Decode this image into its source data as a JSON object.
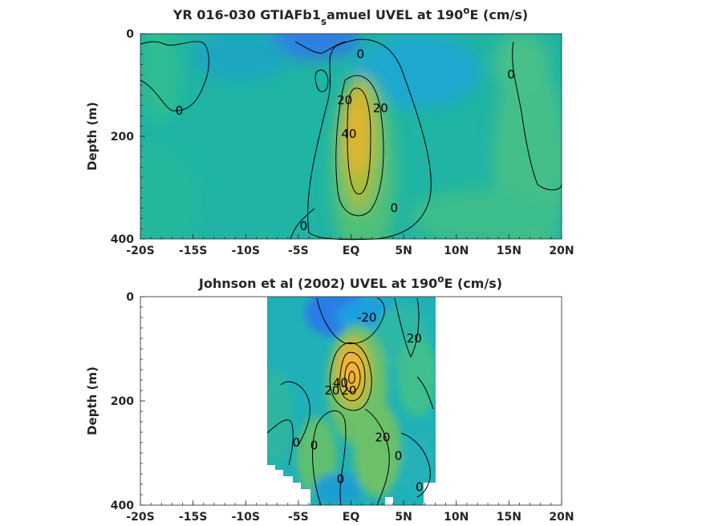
{
  "chart_data": [
    {
      "type": "heatmap",
      "title_parts": {
        "pre": "YR 016-030 GTIAFb1",
        "sub": "s",
        "mid": "amuel UVEL at 190",
        "sup": "o",
        "post": "E (cm/s)"
      },
      "xlabel": "",
      "ylabel": "Depth (m)",
      "x_tick_labels": [
        "-20S",
        "-15S",
        "-10S",
        "-5S",
        "EQ",
        "5N",
        "10N",
        "15N",
        "20N"
      ],
      "x_tick_values": [
        -20,
        -15,
        -10,
        -5,
        0,
        5,
        10,
        15,
        20
      ],
      "y_tick_labels": [
        "0",
        "200",
        "400"
      ],
      "y_tick_values": [
        0,
        200,
        400
      ],
      "xlim": [
        -20,
        20
      ],
      "ylim": [
        400,
        0
      ],
      "data_extent_lat": [
        -20,
        20
      ],
      "contour_levels": [
        -20,
        0,
        20,
        40
      ],
      "contour_labels": [
        {
          "text": "0",
          "lat": 0.9,
          "depth": 40
        },
        {
          "text": "20",
          "lat": -0.6,
          "depth": 130
        },
        {
          "text": "20",
          "lat": 2.8,
          "depth": 145
        },
        {
          "text": "40",
          "lat": -0.2,
          "depth": 195
        },
        {
          "text": "0",
          "lat": 4.1,
          "depth": 340
        },
        {
          "text": "0",
          "lat": -4.5,
          "depth": 375
        },
        {
          "text": "0",
          "lat": -16.3,
          "depth": 150
        },
        {
          "text": "0",
          "lat": 15.2,
          "depth": 80
        }
      ],
      "jet_core": {
        "lat": 0.5,
        "depth": 170,
        "max_cm_s": 55
      }
    },
    {
      "type": "heatmap",
      "title_parts": {
        "pre": "Johnson et al (2002) UVEL at 190",
        "sub": "",
        "mid": "",
        "sup": "o",
        "post": "E (cm/s)"
      },
      "xlabel": "",
      "ylabel": "Depth (m)",
      "x_tick_labels": [
        "-20S",
        "-15S",
        "-10S",
        "-5S",
        "EQ",
        "5N",
        "10N",
        "15N",
        "20N"
      ],
      "x_tick_values": [
        -20,
        -15,
        -10,
        -5,
        0,
        5,
        10,
        15,
        20
      ],
      "y_tick_labels": [
        "0",
        "200",
        "400"
      ],
      "y_tick_values": [
        0,
        200,
        400
      ],
      "xlim": [
        -20,
        20
      ],
      "ylim": [
        400,
        0
      ],
      "data_extent_lat": [
        -8,
        8
      ],
      "contour_levels": [
        -20,
        0,
        20,
        40
      ],
      "contour_labels": [
        {
          "text": "-20",
          "lat": 1.5,
          "depth": 40
        },
        {
          "text": "20",
          "lat": 6,
          "depth": 80
        },
        {
          "text": "20",
          "lat": -1.8,
          "depth": 180
        },
        {
          "text": "40",
          "lat": -1.0,
          "depth": 165
        },
        {
          "text": "20",
          "lat": -0.2,
          "depth": 180
        },
        {
          "text": "0",
          "lat": -5.2,
          "depth": 280
        },
        {
          "text": "0",
          "lat": -3.5,
          "depth": 285
        },
        {
          "text": "20",
          "lat": 3.0,
          "depth": 270
        },
        {
          "text": "0",
          "lat": 4.5,
          "depth": 305
        },
        {
          "text": "0",
          "lat": -1.0,
          "depth": 350
        },
        {
          "text": "0",
          "lat": 6.5,
          "depth": 365
        }
      ],
      "jet_core": {
        "lat": 0.0,
        "depth": 150,
        "max_cm_s": 60
      }
    }
  ]
}
